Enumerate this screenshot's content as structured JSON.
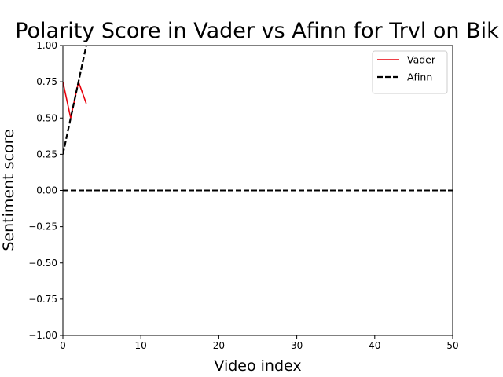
{
  "chart_data": {
    "type": "line",
    "title": "Polarity Score in Vader vs Afinn for Trvl on Bik",
    "xlabel": "Video index",
    "ylabel": "Sentiment score",
    "xlim": [
      0,
      50
    ],
    "ylim": [
      -1.0,
      1.0
    ],
    "x_ticks": [
      0,
      10,
      20,
      30,
      40,
      50
    ],
    "y_ticks": [
      -1.0,
      -0.75,
      -0.5,
      -0.25,
      0.0,
      0.25,
      0.5,
      0.75,
      1.0
    ],
    "x_tick_labels": [
      "0",
      "10",
      "20",
      "30",
      "40",
      "50"
    ],
    "y_tick_labels": [
      "−1.00",
      "−0.75",
      "−0.50",
      "−0.25",
      "0.00",
      "0.25",
      "0.50",
      "0.75",
      "1.00"
    ],
    "grid": false,
    "legend_position": "top-right",
    "series": [
      {
        "name": "Vader",
        "color": "#e8000b",
        "style": "solid",
        "x": [
          0,
          1,
          2,
          3
        ],
        "values": [
          0.75,
          0.5,
          0.75,
          0.6
        ]
      },
      {
        "name": "Afinn",
        "color": "#000000",
        "style": "dashed",
        "x": [
          0,
          1,
          2,
          3
        ],
        "values": [
          0.25,
          0.5,
          0.75,
          1.0
        ]
      }
    ],
    "reference_lines": [
      {
        "y": 0.0,
        "color": "#000000",
        "style": "dashed"
      }
    ]
  }
}
